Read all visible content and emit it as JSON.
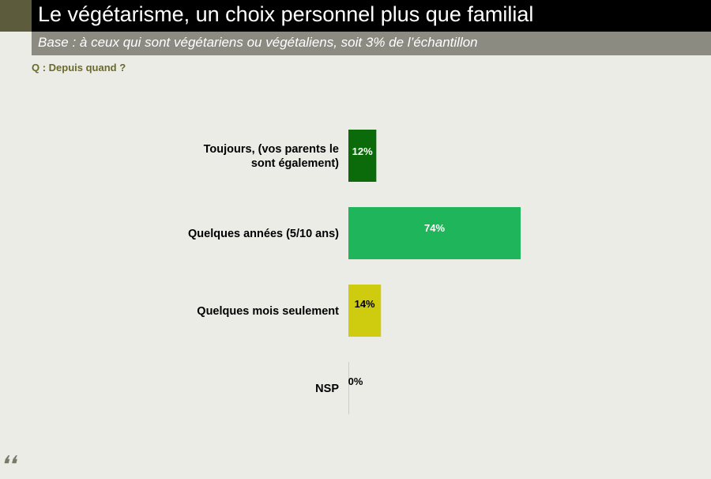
{
  "header": {
    "title": "Le végétarisme, un choix personnel plus que familial",
    "subtitle": "Base : à ceux qui sont végétariens ou végétaliens, soit 3% de l’échantillon",
    "question": "Q : Depuis quand ?"
  },
  "colors": {
    "title_bg": "#000000",
    "subtitle_bg": "#8b8b82",
    "page_bg": "#ebece6",
    "question_text": "#6b6a2c"
  },
  "chart_data": {
    "type": "bar",
    "orientation": "horizontal",
    "categories": [
      [
        "Toujours, (vos parents le",
        "sont également)"
      ],
      [
        "Quelques années (5/10 ans)"
      ],
      [
        "Quelques mois seulement"
      ],
      [
        "NSP"
      ]
    ],
    "values": [
      12,
      74,
      14,
      0
    ],
    "value_labels": [
      "12%",
      "74%",
      "14%",
      "0%"
    ],
    "bar_colors": [
      "#0b6b0b",
      "#1fb55a",
      "#cfcc10",
      "#cccccc"
    ],
    "value_label_colors": [
      "#ffffff",
      "#ffffff",
      "#000000",
      "#000000"
    ],
    "xlim": [
      0,
      100
    ],
    "grid": false,
    "legend": "none"
  }
}
